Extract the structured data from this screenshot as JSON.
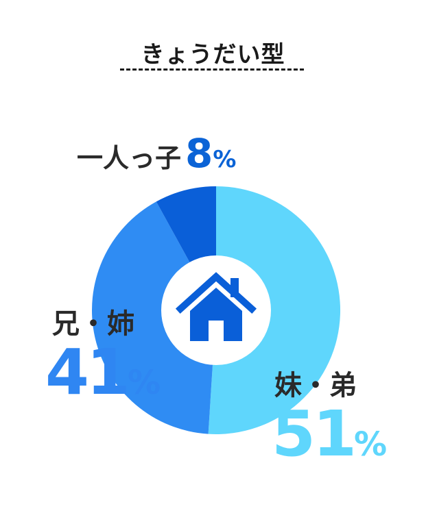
{
  "title": "きょうだい型",
  "chart_data": {
    "type": "pie",
    "title": "きょうだい型",
    "unit": "%",
    "center_icon": "house-icon",
    "slices": [
      {
        "label": "妹・弟",
        "value": 51,
        "color": "#5fd6fc"
      },
      {
        "label": "兄・姉",
        "value": 41,
        "color": "#2f8cf3"
      },
      {
        "label": "一人っ子",
        "value": 8,
        "color": "#0a5fd8"
      }
    ]
  },
  "labels": {
    "only_child": {
      "name": "一人っ子",
      "value": "8",
      "unit": "%"
    },
    "older": {
      "name": "兄・姉",
      "value": "41",
      "unit": "%"
    },
    "younger": {
      "name": "妹・弟",
      "value": "51",
      "unit": "%"
    }
  }
}
